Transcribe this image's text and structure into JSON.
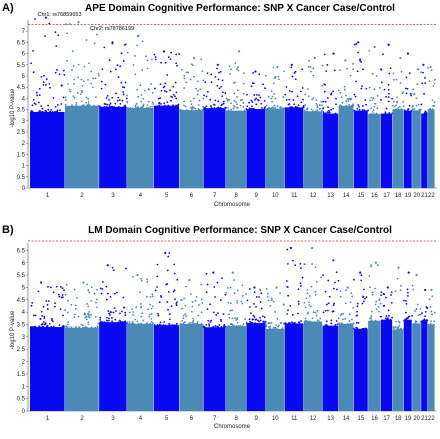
{
  "colors": {
    "odd_chromosome": "#0a0af2",
    "even_chromosome": "#4a8ab4",
    "threshold_line": "#c0392b",
    "axis": "#555555"
  },
  "chart_data": [
    {
      "panel": "A)",
      "type": "scatter",
      "subtype": "manhattan",
      "title": "APE Domain Cognitive Performance: SNP X Cancer Case/Control",
      "xlabel": "Chromosome",
      "ylabel": "-log10 P-value",
      "ylim": [
        0,
        7.5
      ],
      "yticks": [
        "0",
        "0.5",
        "1",
        "1.5",
        "2",
        "2.5",
        "3",
        "3.5",
        "4",
        "4.5",
        "5",
        "5.5",
        "6",
        "6.5",
        "7"
      ],
      "threshold": 7.3,
      "grid": false,
      "chromosomes": [
        "1",
        "2",
        "3",
        "4",
        "5",
        "6",
        "7",
        "8",
        "9",
        "10",
        "11",
        "12",
        "13",
        "14",
        "15",
        "16",
        "17",
        "18",
        "19",
        "20",
        "21",
        "22"
      ],
      "chromosome_peaks": [
        7.6,
        7.4,
        6.5,
        6.8,
        6.1,
        5.8,
        5.5,
        6.1,
        5.2,
        5.4,
        5.5,
        5.8,
        6.0,
        5.7,
        6.5,
        6.3,
        6.4,
        5.8,
        6.0,
        5.3,
        5.5,
        5.4
      ],
      "annotations": [
        {
          "label": "Chr1: rs76859653",
          "chr": "1",
          "y": 7.6
        },
        {
          "label": "Chr2: rs78786199",
          "chr": "2",
          "y": 7.4
        }
      ]
    },
    {
      "panel": "B)",
      "type": "scatter",
      "subtype": "manhattan",
      "title": "LM Domain Cognitive Performance: SNP X Cancer Case/Control",
      "xlabel": "Chromosome",
      "ylabel": "-log10 P-value",
      "ylim": [
        0,
        6.8
      ],
      "yticks": [
        "0",
        "0.5",
        "1",
        "1.5",
        "2",
        "2.5",
        "3",
        "3.5",
        "4",
        "4.5",
        "5",
        "5.5",
        "6",
        "6.5"
      ],
      "threshold": 7.3,
      "grid": false,
      "chromosomes": [
        "1",
        "2",
        "3",
        "4",
        "5",
        "6",
        "7",
        "8",
        "9",
        "10",
        "11",
        "12",
        "13",
        "14",
        "15",
        "16",
        "17",
        "18",
        "19",
        "20",
        "21",
        "22"
      ],
      "chromosome_peaks": [
        5.2,
        5.2,
        5.9,
        5.5,
        6.4,
        5.3,
        5.6,
        5.6,
        5.0,
        5.0,
        6.6,
        6.6,
        6.1,
        5.0,
        5.6,
        6.0,
        5.0,
        5.8,
        5.6,
        5.5,
        4.9,
        4.9
      ],
      "annotations": []
    }
  ]
}
